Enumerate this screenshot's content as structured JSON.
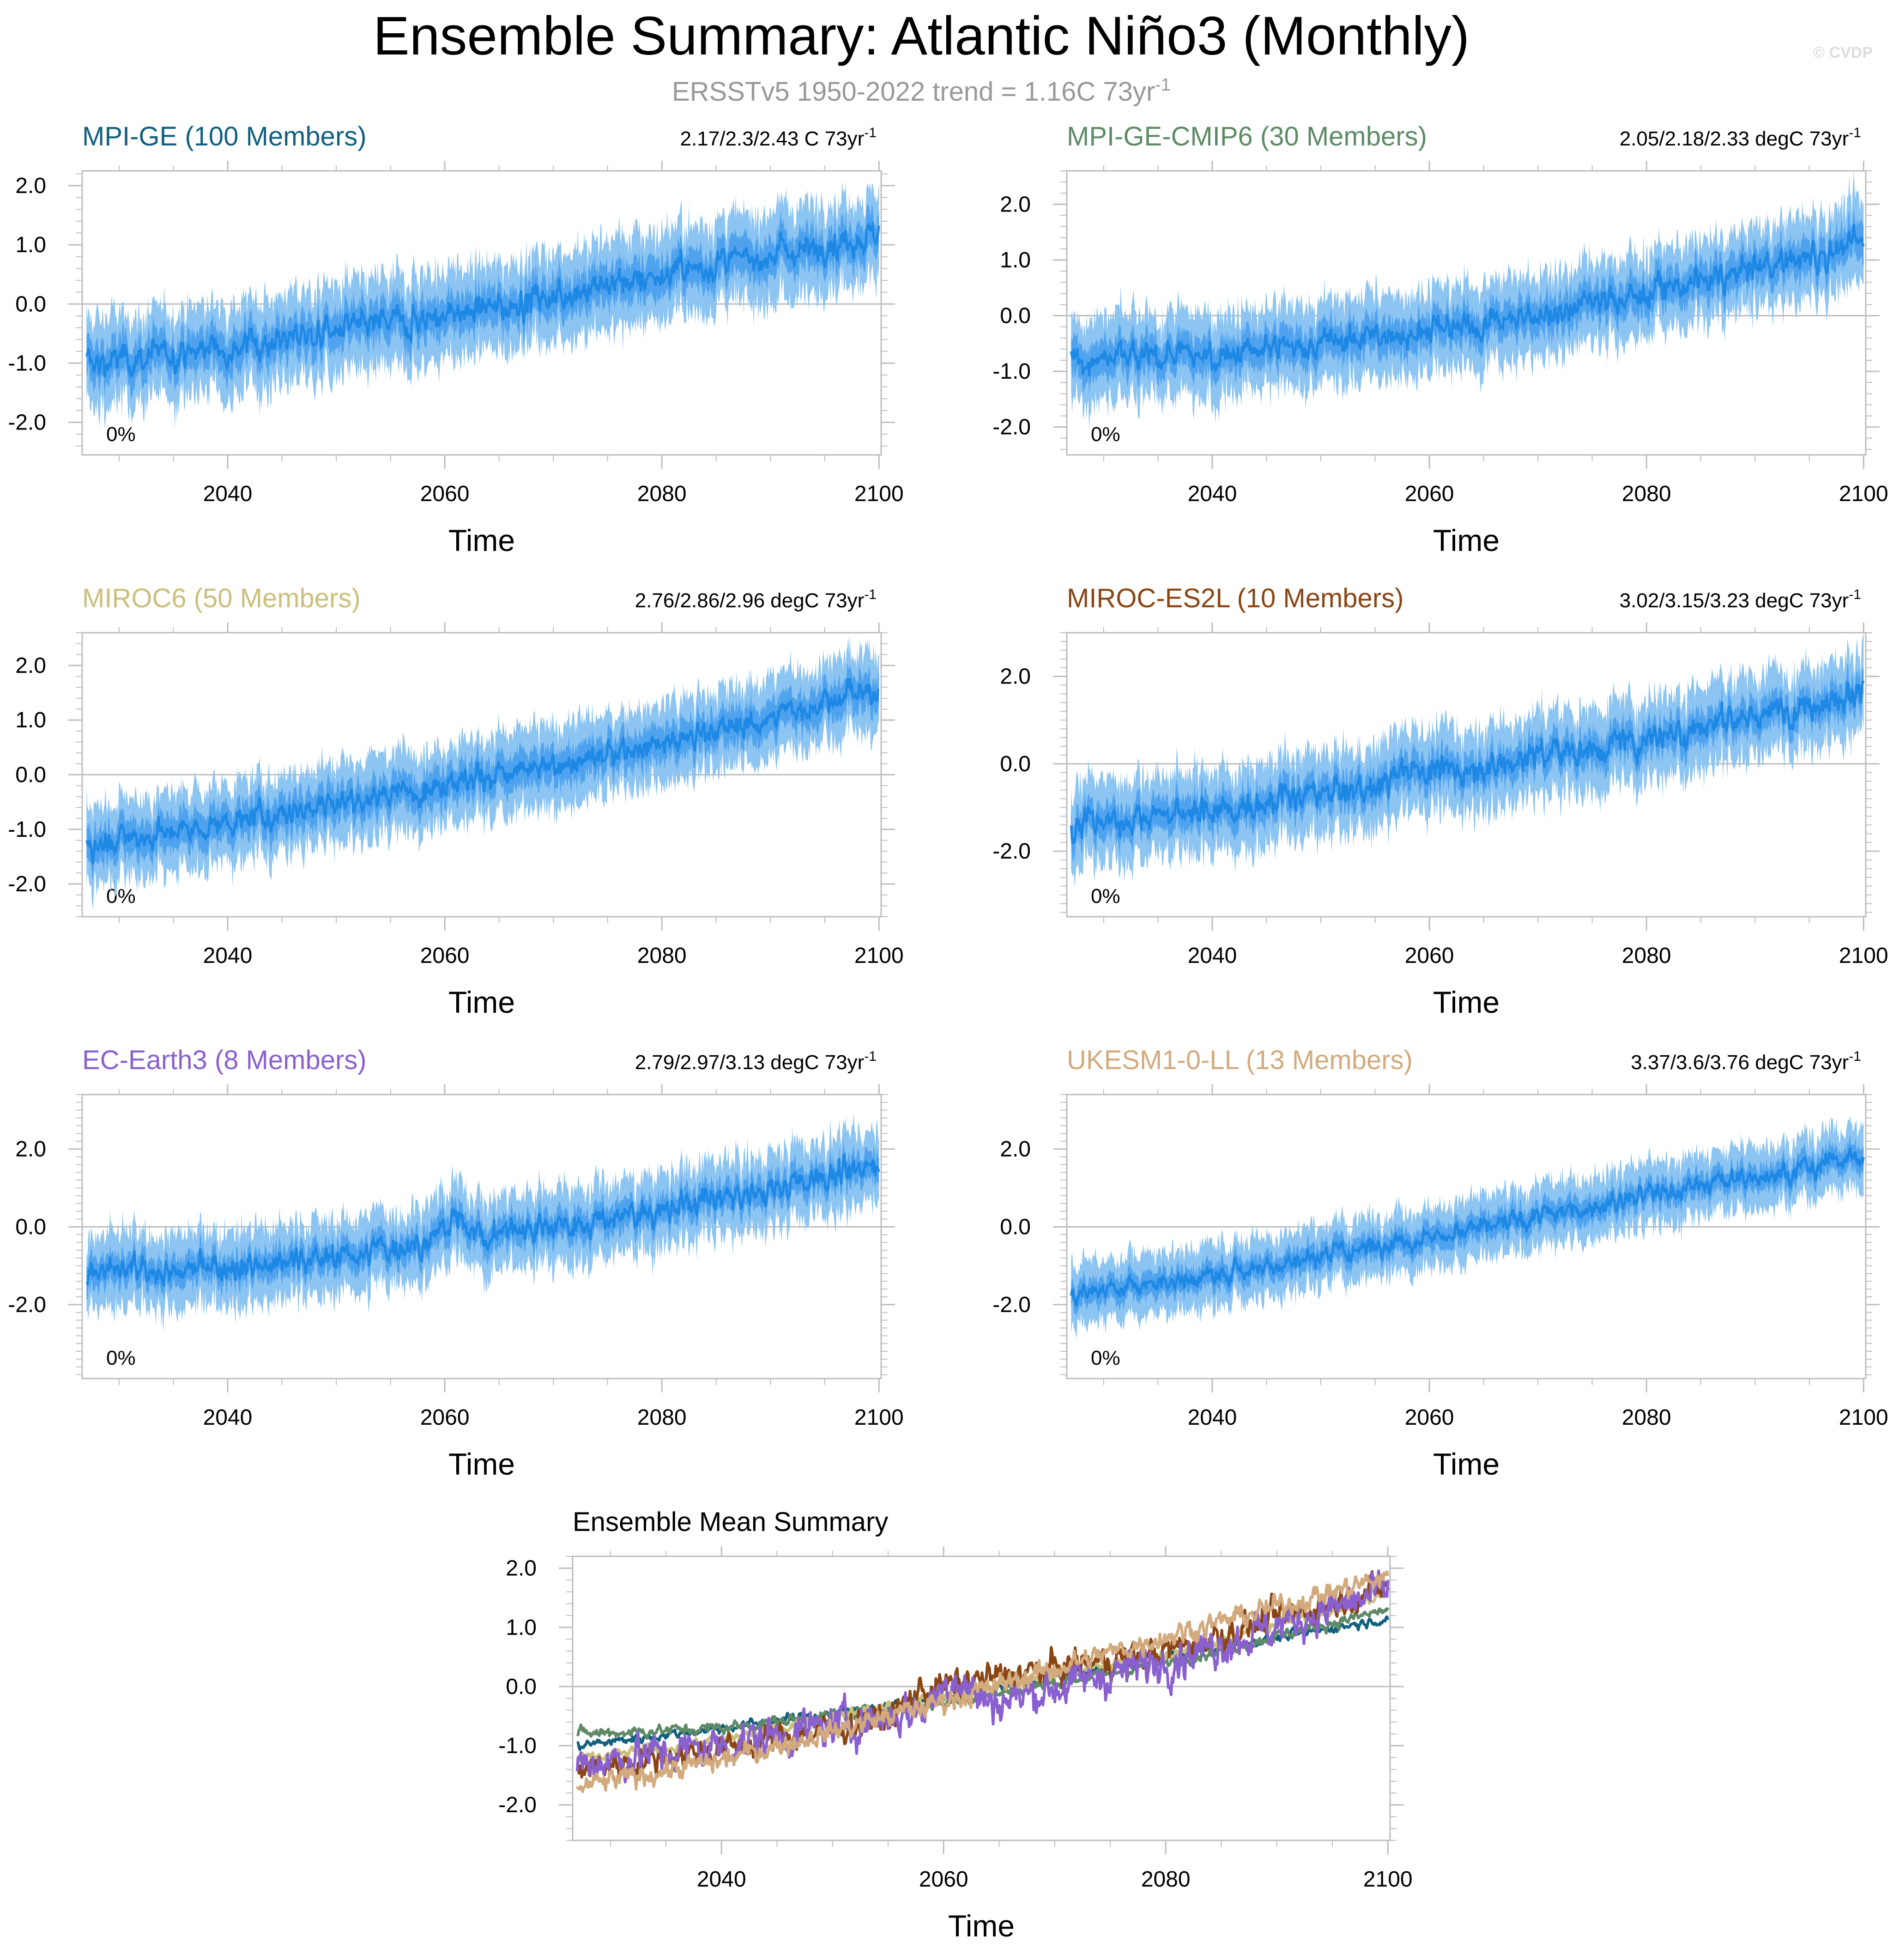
{
  "page": {
    "title": "Ensemble Summary: Atlantic Niño3 (Monthly)",
    "subtitle_prefix": "ERSSTv5 1950-2022 trend = 1.16C 73yr",
    "subtitle_sup": "-1",
    "watermark": "© CVDP"
  },
  "colors": {
    "band_outer": "#8cc4f2",
    "band_inner": "#4fa3ee",
    "mean_line": "#1e88e5",
    "frame": "#bdbdbd",
    "zero_line": "#bdbdbd",
    "text": "#000000",
    "subtitle": "#999999",
    "watermark": "#dddddd"
  },
  "chart_data": [
    {
      "type": "line",
      "title": "MPI-GE (100 Members)",
      "title_color": "#11607f",
      "trend_label": "2.17/2.3/2.43 C 73yr",
      "trend_sup": "-1",
      "pct_label": "0%",
      "xlabel": "Time",
      "xlim": [
        2026.6,
        2100.2
      ],
      "ylim": [
        -2.55,
        2.25
      ],
      "xticks": [
        2040,
        2060,
        2080,
        2100
      ],
      "xtick_labels": [
        "2040",
        "2060",
        "2080",
        "2100"
      ],
      "yticks": [
        2.0,
        1.0,
        0.0,
        -1.0,
        -2.0
      ],
      "ytick_labels": [
        "2.0",
        "1.0",
        "0.0",
        "-1.0",
        "-2.0"
      ],
      "series": [
        {
          "name": "ensemble mean",
          "x": [
            2027,
            2030,
            2035,
            2040,
            2045,
            2050,
            2055,
            2060,
            2065,
            2070,
            2075,
            2080,
            2085,
            2090,
            2095,
            2100
          ],
          "values": [
            -1.0,
            -0.95,
            -0.85,
            -0.7,
            -0.6,
            -0.45,
            -0.3,
            -0.2,
            -0.05,
            0.15,
            0.35,
            0.5,
            0.65,
            0.85,
            1.0,
            1.15
          ]
        }
      ],
      "spread_inner": 0.3,
      "spread_outer": 0.6,
      "noise": 0.22
    },
    {
      "type": "line",
      "title": "MPI-GE-CMIP6 (30 Members)",
      "title_color": "#5e8a67",
      "trend_label": "2.05/2.18/2.33 degC 73yr",
      "trend_sup": "-1",
      "pct_label": "0%",
      "xlabel": "Time",
      "xlim": [
        2026.6,
        2100.2
      ],
      "ylim": [
        -2.5,
        2.6
      ],
      "xticks": [
        2040,
        2060,
        2080,
        2100
      ],
      "xtick_labels": [
        "2040",
        "2060",
        "2080",
        "2100"
      ],
      "yticks": [
        2.0,
        1.0,
        0.0,
        -1.0,
        -2.0
      ],
      "ytick_labels": [
        "2.0",
        "1.0",
        "0.0",
        "-1.0",
        "-2.0"
      ],
      "series": [
        {
          "name": "ensemble mean",
          "x": [
            2027,
            2030,
            2035,
            2040,
            2045,
            2050,
            2055,
            2060,
            2065,
            2070,
            2075,
            2080,
            2085,
            2090,
            2095,
            2100
          ],
          "values": [
            -0.8,
            -0.78,
            -0.75,
            -0.7,
            -0.62,
            -0.5,
            -0.38,
            -0.28,
            -0.15,
            0.0,
            0.2,
            0.4,
            0.6,
            0.85,
            1.05,
            1.3
          ]
        }
      ],
      "spread_inner": 0.3,
      "spread_outer": 0.6,
      "noise": 0.22
    },
    {
      "type": "line",
      "title": "MIROC6 (50 Members)",
      "title_color": "#cbbf7a",
      "trend_label": "2.76/2.86/2.96 degC 73yr",
      "trend_sup": "-1",
      "pct_label": "0%",
      "xlabel": "Time",
      "xlim": [
        2026.6,
        2100.2
      ],
      "ylim": [
        -2.6,
        2.6
      ],
      "xticks": [
        2040,
        2060,
        2080,
        2100
      ],
      "xtick_labels": [
        "2040",
        "2060",
        "2080",
        "2100"
      ],
      "yticks": [
        2.0,
        1.0,
        0.0,
        -1.0,
        -2.0
      ],
      "ytick_labels": [
        "2.0",
        "1.0",
        "0.0",
        "-1.0",
        "-2.0"
      ],
      "series": [
        {
          "name": "ensemble mean",
          "x": [
            2027,
            2030,
            2035,
            2040,
            2045,
            2050,
            2055,
            2060,
            2065,
            2070,
            2075,
            2080,
            2085,
            2090,
            2095,
            2100
          ],
          "values": [
            -1.25,
            -1.2,
            -1.05,
            -0.9,
            -0.7,
            -0.5,
            -0.35,
            -0.15,
            0.0,
            0.15,
            0.35,
            0.55,
            0.8,
            1.05,
            1.3,
            1.55
          ]
        }
      ],
      "spread_inner": 0.3,
      "spread_outer": 0.6,
      "noise": 0.2
    },
    {
      "type": "line",
      "title": "MIROC-ES2L (10 Members)",
      "title_color": "#8b4513",
      "trend_label": "3.02/3.15/3.23 degC 73yr",
      "trend_sup": "-1",
      "pct_label": "0%",
      "xlabel": "Time",
      "xlim": [
        2026.6,
        2100.2
      ],
      "ylim": [
        -3.5,
        3.0
      ],
      "xticks": [
        2040,
        2060,
        2080,
        2100
      ],
      "xtick_labels": [
        "2040",
        "2060",
        "2080",
        "2100"
      ],
      "yticks": [
        2.0,
        0.0,
        -2.0
      ],
      "ytick_labels": [
        "2.0",
        "0.0",
        "-2.0"
      ],
      "series": [
        {
          "name": "ensemble mean",
          "x": [
            2027,
            2030,
            2035,
            2040,
            2045,
            2050,
            2055,
            2058,
            2060,
            2065,
            2070,
            2075,
            2080,
            2085,
            2090,
            2095,
            2100
          ],
          "values": [
            -1.4,
            -1.3,
            -1.2,
            -1.05,
            -0.9,
            -0.7,
            -0.55,
            -0.05,
            -0.15,
            -0.1,
            0.2,
            0.35,
            0.6,
            0.9,
            1.05,
            1.35,
            1.7
          ]
        }
      ],
      "spread_inner": 0.35,
      "spread_outer": 0.75,
      "noise": 0.3
    },
    {
      "type": "line",
      "title": "EC-Earth3 (8 Members)",
      "title_color": "#8a60d0",
      "trend_label": "2.79/2.97/3.13 degC 73yr",
      "trend_sup": "-1",
      "pct_label": "0%",
      "xlabel": "Time",
      "xlim": [
        2026.6,
        2100.2
      ],
      "ylim": [
        -3.9,
        3.4
      ],
      "xticks": [
        2040,
        2060,
        2080,
        2100
      ],
      "xtick_labels": [
        "2040",
        "2060",
        "2080",
        "2100"
      ],
      "yticks": [
        2.0,
        0.0,
        -2.0
      ],
      "ytick_labels": [
        "2.0",
        "0.0",
        "-2.0"
      ],
      "series": [
        {
          "name": "ensemble mean",
          "x": [
            2027,
            2030,
            2035,
            2040,
            2045,
            2050,
            2055,
            2058,
            2061,
            2064,
            2066,
            2070,
            2075,
            2080,
            2085,
            2090,
            2095,
            2100
          ],
          "values": [
            -1.3,
            -1.1,
            -1.15,
            -1.0,
            -0.9,
            -0.75,
            -0.55,
            -0.4,
            0.2,
            -0.3,
            -0.05,
            0.05,
            0.2,
            0.45,
            0.7,
            0.95,
            1.3,
            1.6
          ]
        }
      ],
      "spread_inner": 0.35,
      "spread_outer": 0.75,
      "noise": 0.3
    },
    {
      "type": "line",
      "title": "UKESM1-0-LL (13 Members)",
      "title_color": "#d2aa7d",
      "trend_label": "3.37/3.6/3.76 degC 73yr",
      "trend_sup": "-1",
      "pct_label": "0%",
      "xlabel": "Time",
      "xlim": [
        2026.6,
        2100.2
      ],
      "ylim": [
        -3.9,
        3.4
      ],
      "xticks": [
        2040,
        2060,
        2080,
        2100
      ],
      "xtick_labels": [
        "2040",
        "2060",
        "2080",
        "2100"
      ],
      "yticks": [
        2.0,
        0.0,
        -2.0
      ],
      "ytick_labels": [
        "2.0",
        "0.0",
        "-2.0"
      ],
      "series": [
        {
          "name": "ensemble mean",
          "x": [
            2027,
            2030,
            2035,
            2040,
            2045,
            2050,
            2055,
            2060,
            2065,
            2070,
            2075,
            2080,
            2085,
            2090,
            2095,
            2100
          ],
          "values": [
            -1.7,
            -1.6,
            -1.45,
            -1.25,
            -1.0,
            -0.75,
            -0.5,
            -0.25,
            -0.05,
            0.25,
            0.55,
            0.85,
            1.05,
            1.3,
            1.55,
            1.85
          ]
        }
      ],
      "spread_inner": 0.3,
      "spread_outer": 0.65,
      "noise": 0.22
    },
    {
      "type": "line",
      "title": "Ensemble Mean Summary",
      "xlabel": "Time",
      "xlim": [
        2026.6,
        2100.2
      ],
      "ylim": [
        -2.6,
        2.2
      ],
      "xticks": [
        2040,
        2060,
        2080,
        2100
      ],
      "xtick_labels": [
        "2040",
        "2060",
        "2080",
        "2100"
      ],
      "yticks": [
        2.0,
        1.0,
        0.0,
        -1.0,
        -2.0
      ],
      "ytick_labels": [
        "2.0",
        "1.0",
        "0.0",
        "-1.0",
        "-2.0"
      ],
      "series": [
        {
          "name": "MPI-GE",
          "color": "#11607f",
          "noise": 0.06,
          "x": [
            2027,
            2040,
            2060,
            2080,
            2100
          ],
          "values": [
            -1.0,
            -0.7,
            -0.2,
            0.5,
            1.15
          ]
        },
        {
          "name": "MPI-GE-CMIP6",
          "color": "#5e8a67",
          "noise": 0.08,
          "x": [
            2027,
            2040,
            2060,
            2080,
            2100
          ],
          "values": [
            -0.8,
            -0.7,
            -0.28,
            0.4,
            1.3
          ]
        },
        {
          "name": "MIROC6",
          "color": "#cbbf7a",
          "noise": 0.08,
          "x": [
            2027,
            2040,
            2060,
            2080,
            2100
          ],
          "values": [
            -1.25,
            -0.9,
            -0.15,
            0.55,
            1.55
          ]
        },
        {
          "name": "MIROC-ES2L",
          "color": "#8b4513",
          "noise": 0.2,
          "x": [
            2027,
            2040,
            2055,
            2058,
            2080,
            2100
          ],
          "values": [
            -1.4,
            -1.05,
            -0.55,
            -0.05,
            0.6,
            1.7
          ]
        },
        {
          "name": "EC-Earth3",
          "color": "#8a60d0",
          "noise": 0.28,
          "x": [
            2027,
            2040,
            2058,
            2061,
            2064,
            2080,
            2100
          ],
          "values": [
            -1.3,
            -1.0,
            -0.4,
            0.2,
            -0.3,
            0.45,
            1.6
          ]
        },
        {
          "name": "UKESM1-0-LL",
          "color": "#d2aa7d",
          "noise": 0.15,
          "x": [
            2027,
            2040,
            2060,
            2080,
            2100
          ],
          "values": [
            -1.7,
            -1.25,
            -0.25,
            0.85,
            1.85
          ]
        }
      ]
    }
  ]
}
